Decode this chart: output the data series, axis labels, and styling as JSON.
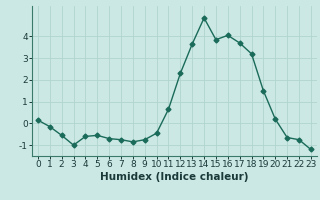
{
  "x": [
    0,
    1,
    2,
    3,
    4,
    5,
    6,
    7,
    8,
    9,
    10,
    11,
    12,
    13,
    14,
    15,
    16,
    17,
    18,
    19,
    20,
    21,
    22,
    23
  ],
  "y": [
    0.15,
    -0.15,
    -0.55,
    -1.0,
    -0.6,
    -0.55,
    -0.7,
    -0.75,
    -0.85,
    -0.75,
    -0.45,
    0.65,
    2.3,
    3.65,
    4.85,
    3.85,
    4.05,
    3.7,
    3.2,
    1.5,
    0.2,
    -0.65,
    -0.75,
    -1.2
  ],
  "line_color": "#1a6b5a",
  "marker": "D",
  "marker_size": 2.5,
  "bg_color": "#cce8e4",
  "grid_color": "#b0d4cf",
  "xlabel": "Humidex (Indice chaleur)",
  "yticks": [
    -1,
    0,
    1,
    2,
    3,
    4
  ],
  "xticks": [
    0,
    1,
    2,
    3,
    4,
    5,
    6,
    7,
    8,
    9,
    10,
    11,
    12,
    13,
    14,
    15,
    16,
    17,
    18,
    19,
    20,
    21,
    22,
    23
  ],
  "ylim": [
    -1.5,
    5.4
  ],
  "xlim": [
    -0.5,
    23.5
  ],
  "xlabel_fontsize": 7.5,
  "tick_fontsize": 6.5,
  "line_width": 1.0
}
